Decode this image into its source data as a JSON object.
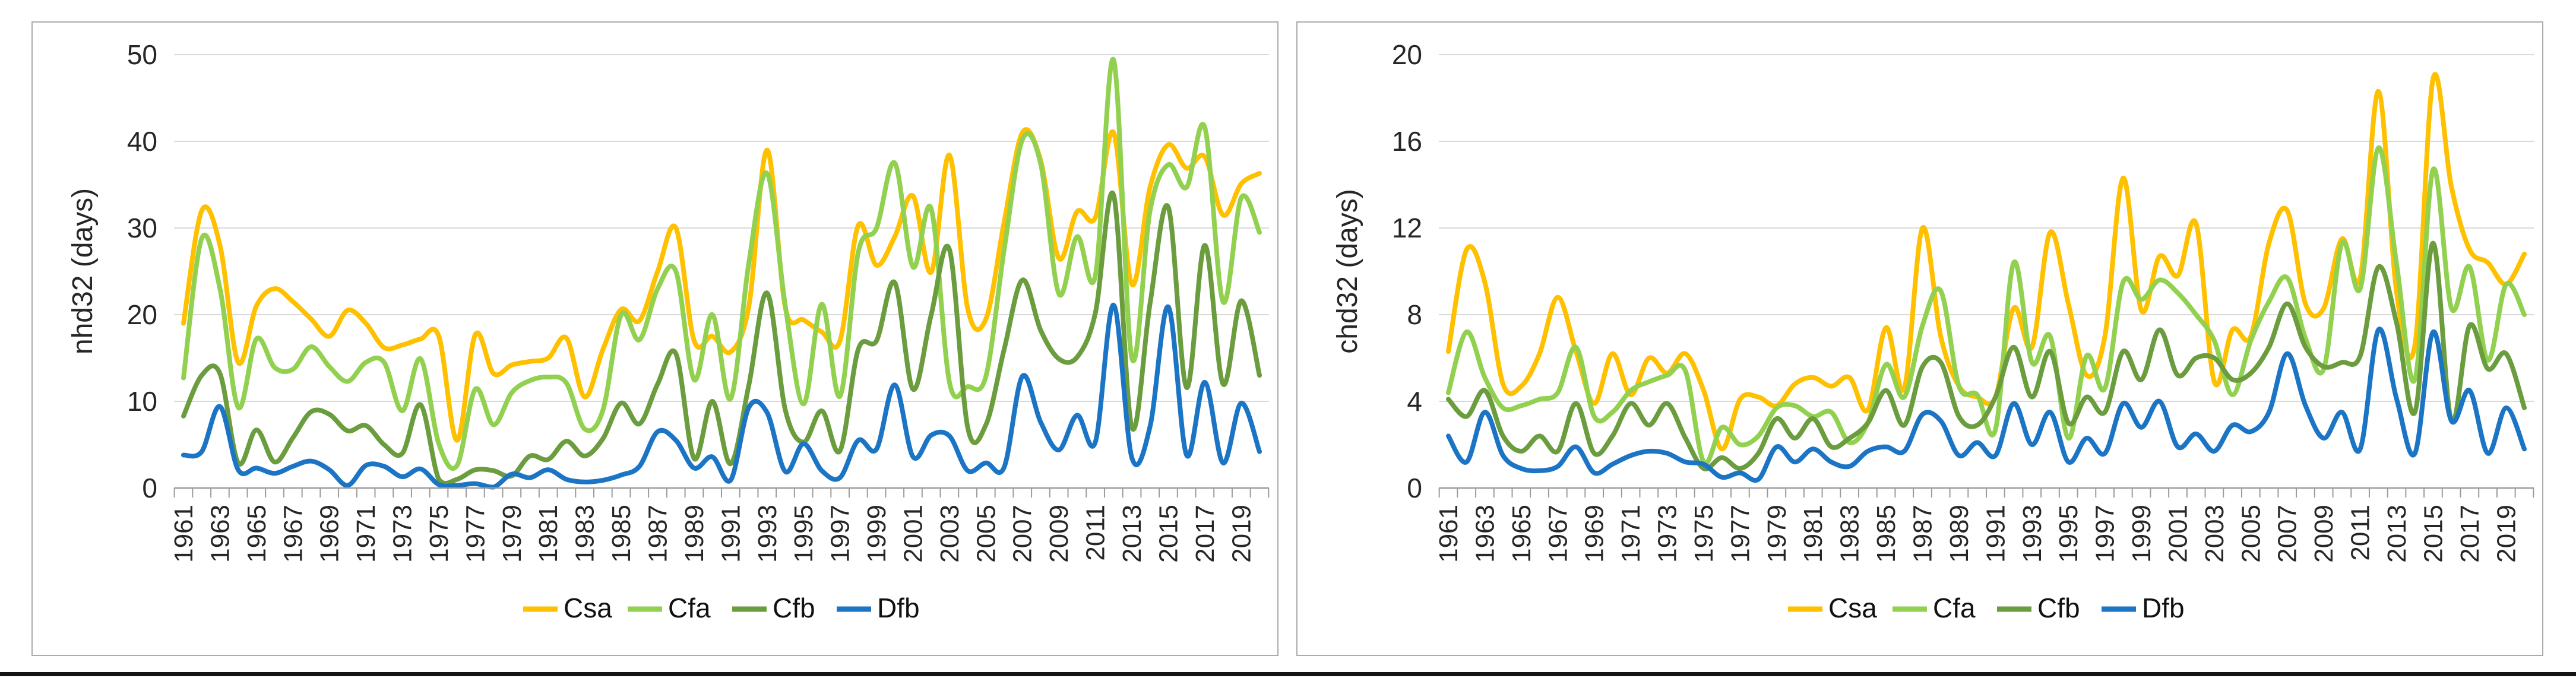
{
  "page": {
    "description_left_axis": "nhd32 (days)",
    "description_right_axis": "chd32 (days)",
    "bottom_border_present": true
  },
  "chart_data": [
    {
      "type": "line",
      "title": "",
      "xlabel": "",
      "ylabel": "nhd32 (days)",
      "ylim": [
        0,
        50
      ],
      "y_ticks": [
        0,
        10,
        20,
        30,
        40,
        50
      ],
      "grid": true,
      "legend_position": "bottom",
      "smooth": true,
      "x": [
        1961,
        1962,
        1963,
        1964,
        1965,
        1966,
        1967,
        1968,
        1969,
        1970,
        1971,
        1972,
        1973,
        1974,
        1975,
        1976,
        1977,
        1978,
        1979,
        1980,
        1981,
        1982,
        1983,
        1984,
        1985,
        1986,
        1987,
        1988,
        1989,
        1990,
        1991,
        1992,
        1993,
        1994,
        1995,
        1996,
        1997,
        1998,
        1999,
        2000,
        2001,
        2002,
        2003,
        2004,
        2005,
        2006,
        2007,
        2008,
        2009,
        2010,
        2011,
        2012,
        2013,
        2014,
        2015,
        2016,
        2017,
        2018,
        2019,
        2020
      ],
      "x_tick_labels": [
        "1961",
        "1963",
        "1965",
        "1967",
        "1969",
        "1971",
        "1973",
        "1975",
        "1977",
        "1979",
        "1981",
        "1983",
        "1985",
        "1987",
        "1989",
        "1991",
        "1993",
        "1995",
        "1997",
        "1999",
        "2001",
        "2003",
        "2005",
        "2007",
        "2009",
        "2011",
        "2013",
        "2015",
        "2017",
        "2019"
      ],
      "series": [
        {
          "name": "Csa",
          "color": "#FFC000",
          "values": [
            19,
            32,
            28,
            14.5,
            21,
            23,
            21.5,
            19.5,
            17.5,
            20.5,
            19,
            16.2,
            16.5,
            17.2,
            17.5,
            5.5,
            17.7,
            13.2,
            14.2,
            14.6,
            15,
            17.3,
            10.5,
            16,
            20.6,
            19.3,
            25,
            30,
            17,
            17.5,
            15.7,
            21,
            39,
            20.8,
            19.4,
            18,
            17,
            30.3,
            25.7,
            29,
            33.7,
            24.9,
            38.4,
            20.7,
            19.5,
            30.7,
            41,
            37.8,
            26.5,
            31.9,
            31.2,
            41,
            23.5,
            34.7,
            39.6,
            36.9,
            38.2,
            31.5,
            35.1,
            36.3
          ]
        },
        {
          "name": "Cfa",
          "color": "#92D050",
          "values": [
            12.7,
            28.8,
            23,
            9.3,
            17.2,
            13.9,
            13.7,
            16.3,
            14,
            12.3,
            14.5,
            14.5,
            8.9,
            14.9,
            5.1,
            2.6,
            11.4,
            7.3,
            11,
            12.4,
            12.8,
            12.1,
            6.8,
            9,
            20,
            17.1,
            23,
            25,
            12.5,
            20,
            10.3,
            26,
            36.3,
            21,
            9.7,
            21.2,
            10.6,
            27.2,
            30,
            37.5,
            25.5,
            32.2,
            12.2,
            11.7,
            12.9,
            27.5,
            40.2,
            37.4,
            22.4,
            29,
            24.5,
            49.4,
            15,
            32,
            37.3,
            34.7,
            41.6,
            21.5,
            33.5,
            29.5
          ]
        },
        {
          "name": "Cfb",
          "color": "#6B9C3E",
          "values": [
            8.3,
            13,
            13.2,
            2.9,
            6.7,
            3,
            5.8,
            8.8,
            8.5,
            6.6,
            7.2,
            5,
            4,
            9.6,
            1,
            1,
            2.1,
            2,
            1.4,
            3.7,
            3.3,
            5.4,
            3.7,
            5.7,
            9.8,
            7.4,
            12,
            15.5,
            3.4,
            10,
            2.8,
            11.9,
            22.5,
            9,
            5.3,
            8.9,
            4.3,
            16,
            17,
            23.7,
            11.4,
            20,
            27.5,
            7,
            7.3,
            16,
            24,
            18.2,
            14.9,
            15.1,
            20.2,
            33.8,
            7,
            21.3,
            32.4,
            11.6,
            28,
            12,
            21.6,
            13
          ]
        },
        {
          "name": "Dfb",
          "color": "#1B75C4",
          "values": [
            3.8,
            4.2,
            9.4,
            2.1,
            2.3,
            1.7,
            2.5,
            3.1,
            2.1,
            0.3,
            2.6,
            2.5,
            1.3,
            2.2,
            0.4,
            0.3,
            0.5,
            0.1,
            1.6,
            1.2,
            2.1,
            1,
            0.7,
            0.9,
            1.5,
            2.5,
            6.5,
            5.5,
            2.3,
            3.6,
            0.9,
            9.3,
            8.7,
            1.9,
            5.1,
            2,
            1.2,
            5.5,
            4.5,
            11.9,
            3.6,
            6.1,
            6,
            2,
            2.9,
            2.4,
            12.9,
            7.6,
            4.4,
            8.4,
            5.3,
            21.1,
            3.5,
            7.1,
            20.9,
            3.8,
            12.2,
            2.9,
            9.8,
            4.2
          ]
        }
      ],
      "legend": [
        "Csa",
        "Cfa",
        "Cfb",
        "Dfb"
      ]
    },
    {
      "type": "line",
      "title": "",
      "xlabel": "",
      "ylabel": "chd32 (days)",
      "ylim": [
        0,
        20
      ],
      "y_ticks": [
        0,
        4,
        8,
        12,
        16,
        20
      ],
      "grid": true,
      "legend_position": "bottom",
      "smooth": true,
      "x": [
        1961,
        1962,
        1963,
        1964,
        1965,
        1966,
        1967,
        1968,
        1969,
        1970,
        1971,
        1972,
        1973,
        1974,
        1975,
        1976,
        1977,
        1978,
        1979,
        1980,
        1981,
        1982,
        1983,
        1984,
        1985,
        1986,
        1987,
        1988,
        1989,
        1990,
        1991,
        1992,
        1993,
        1994,
        1995,
        1996,
        1997,
        1998,
        1999,
        2000,
        2001,
        2002,
        2003,
        2004,
        2005,
        2006,
        2007,
        2008,
        2009,
        2010,
        2011,
        2012,
        2013,
        2014,
        2015,
        2016,
        2017,
        2018,
        2019,
        2020
      ],
      "x_tick_labels": [
        "1961",
        "1963",
        "1965",
        "1967",
        "1969",
        "1971",
        "1973",
        "1975",
        "1977",
        "1979",
        "1981",
        "1983",
        "1985",
        "1987",
        "1989",
        "1991",
        "1993",
        "1995",
        "1997",
        "1999",
        "2001",
        "2003",
        "2005",
        "2007",
        "2009",
        "2011",
        "2013",
        "2015",
        "2017",
        "2019"
      ],
      "series": [
        {
          "name": "Csa",
          "color": "#FFC000",
          "values": [
            6.3,
            11,
            9.5,
            4.8,
            4.7,
            6.2,
            8.8,
            6.3,
            3.9,
            6.2,
            4.3,
            6,
            5.3,
            6.2,
            4.5,
            1.8,
            4.1,
            4.2,
            3.8,
            4.8,
            5.1,
            4.7,
            5.1,
            3.6,
            7.4,
            4.6,
            12,
            7,
            4.7,
            4.2,
            4.2,
            8.3,
            6.5,
            11.8,
            8.5,
            5.2,
            7,
            14.3,
            8.2,
            10.7,
            9.8,
            12.2,
            4.9,
            7.3,
            7,
            11.3,
            12.8,
            8.5,
            8.3,
            11.5,
            9.7,
            18.3,
            9,
            6.6,
            18.9,
            13.9,
            11,
            10.4,
            9.4,
            10.8
          ]
        },
        {
          "name": "Cfa",
          "color": "#92D050",
          "values": [
            4.4,
            7.2,
            5.1,
            3.7,
            3.8,
            4.1,
            4.4,
            6.5,
            3.3,
            3.5,
            4.5,
            4.9,
            5.2,
            5.4,
            1.2,
            2.8,
            2,
            2.4,
            3.7,
            3.8,
            3.3,
            3.5,
            2.1,
            3,
            5.7,
            4.2,
            7.5,
            9.1,
            4.7,
            4.3,
            2.7,
            10.4,
            5.8,
            7,
            2.3,
            6.1,
            4.6,
            9.5,
            8.7,
            9.6,
            9,
            8,
            6.8,
            4.3,
            6.8,
            8.6,
            9.7,
            6.9,
            5.5,
            11.3,
            9.2,
            15.7,
            10.3,
            5,
            14.7,
            8.3,
            10.2,
            5.9,
            9.4,
            8
          ]
        },
        {
          "name": "Cfb",
          "color": "#6B9C3E",
          "values": [
            4.1,
            3.3,
            4.5,
            2.4,
            1.7,
            2.4,
            1.7,
            3.9,
            1.6,
            2.4,
            3.9,
            2.9,
            3.9,
            2.3,
            0.9,
            1.4,
            0.9,
            1.6,
            3.2,
            2.3,
            3.2,
            1.9,
            2.3,
            3,
            4.5,
            2.9,
            5.6,
            5.8,
            3.3,
            2.9,
            4.2,
            6.5,
            4.2,
            6.3,
            3,
            4.2,
            3.5,
            6.3,
            5,
            7.3,
            5.2,
            6,
            6,
            5,
            5.3,
            6.5,
            8.5,
            6.5,
            5.6,
            5.8,
            6.1,
            10.2,
            7.6,
            3.5,
            11.3,
            3.1,
            7.5,
            5.5,
            6.2,
            3.7
          ]
        },
        {
          "name": "Dfb",
          "color": "#1B75C4",
          "values": [
            2.4,
            1.2,
            3.5,
            1.5,
            0.9,
            0.8,
            1,
            1.9,
            0.7,
            1.1,
            1.5,
            1.7,
            1.6,
            1.2,
            1.1,
            0.5,
            0.7,
            0.4,
            1.9,
            1.2,
            1.8,
            1.2,
            1,
            1.7,
            1.9,
            1.7,
            3.4,
            3.1,
            1.5,
            2.1,
            1.5,
            3.9,
            2,
            3.5,
            1.2,
            2.3,
            1.6,
            3.9,
            2.8,
            4,
            1.9,
            2.5,
            1.7,
            2.9,
            2.6,
            3.5,
            6.2,
            3.8,
            2.3,
            3.5,
            1.8,
            7.3,
            4.1,
            1.6,
            7.2,
            3.1,
            4.5,
            1.6,
            3.7,
            1.8
          ]
        }
      ],
      "legend": [
        "Csa",
        "Cfa",
        "Cfb",
        "Dfb"
      ]
    }
  ],
  "style": {
    "grid_color": "#D9D9D9",
    "axis_color": "#9B9B9B",
    "text_color": "#262626",
    "panel_border_color": "#ABABAB",
    "series_stroke_width": 8
  }
}
